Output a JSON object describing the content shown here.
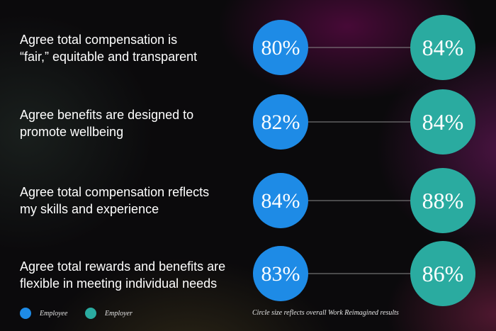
{
  "chart_data": {
    "type": "dot-comparison",
    "categories": [
      "Agree total compensation is “fair,” equitable and transparent",
      "Agree benefits are designed to promote wellbeing",
      "Agree total compensation reflects my skills and experience",
      "Agree total rewards and benefits are flexible in meeting individual needs"
    ],
    "category_lines": [
      [
        "Agree total compensation is",
        "“fair,” equitable and transparent"
      ],
      [
        "Agree benefits are designed to",
        "promote wellbeing"
      ],
      [
        "Agree total compensation reflects",
        "my skills and experience"
      ],
      [
        "Agree total rewards and benefits are",
        "flexible in meeting individual needs"
      ]
    ],
    "series": [
      {
        "name": "Employee",
        "color": "#1e8be6",
        "values": [
          80,
          82,
          84,
          83
        ],
        "labels": [
          "80%",
          "82%",
          "84%",
          "83%"
        ]
      },
      {
        "name": "Employer",
        "color": "#2aaba0",
        "values": [
          84,
          84,
          88,
          86
        ],
        "labels": [
          "84%",
          "84%",
          "88%",
          "86%"
        ]
      }
    ],
    "unit": "%",
    "legend_position": "bottom-left",
    "note": "Circle size reflects overall Work Reimagined results"
  }
}
